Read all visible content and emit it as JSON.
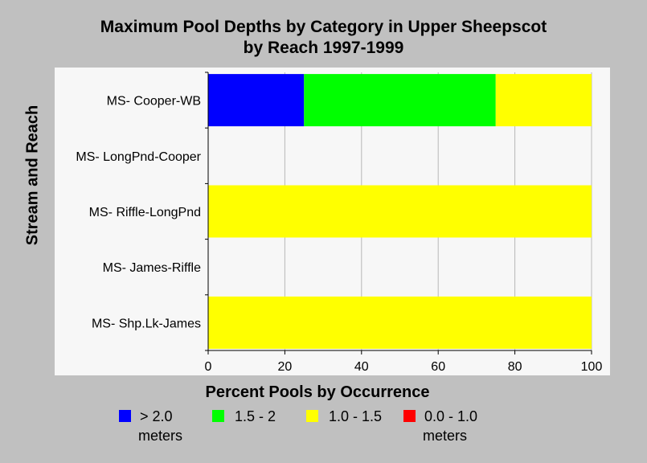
{
  "chart_data": {
    "type": "bar",
    "orientation": "horizontal",
    "stacked": true,
    "title": "Maximum Pool Depths by Category in Upper Sheepscot",
    "subtitle": "by Reach 1997-1999",
    "xlabel": "Percent Pools by Occurrence",
    "ylabel": "Stream and Reach",
    "xlim": [
      0,
      100
    ],
    "xticks": [
      "0",
      "20",
      "40",
      "60",
      "80",
      "100"
    ],
    "grid": true,
    "legend_position": "bottom",
    "categories": [
      "MS- Cooper-WB",
      "MS- LongPnd-Cooper",
      "MS- Riffle-LongPnd",
      "MS- James-Riffle",
      "MS- Shp.Lk-James"
    ],
    "series": [
      {
        "name": "> 2.0 meters",
        "legend_line1": "> 2.0",
        "legend_line2": "meters",
        "color": "#0000ff",
        "values": [
          25,
          0,
          0,
          0,
          0
        ]
      },
      {
        "name": "1.5 - 2",
        "legend_line1": "1.5 - 2",
        "legend_line2": "",
        "color": "#00ff00",
        "values": [
          50,
          0,
          0,
          0,
          0
        ]
      },
      {
        "name": "1.0 - 1.5",
        "legend_line1": "1.0 - 1.5",
        "legend_line2": "",
        "color": "#ffff00",
        "values": [
          25,
          0,
          100,
          0,
          100
        ]
      },
      {
        "name": "0.0 - 1.0 meters",
        "legend_line1": "0.0 - 1.0",
        "legend_line2": "meters",
        "color": "#ff0000",
        "values": [
          0,
          0,
          0,
          0,
          0
        ]
      }
    ]
  }
}
